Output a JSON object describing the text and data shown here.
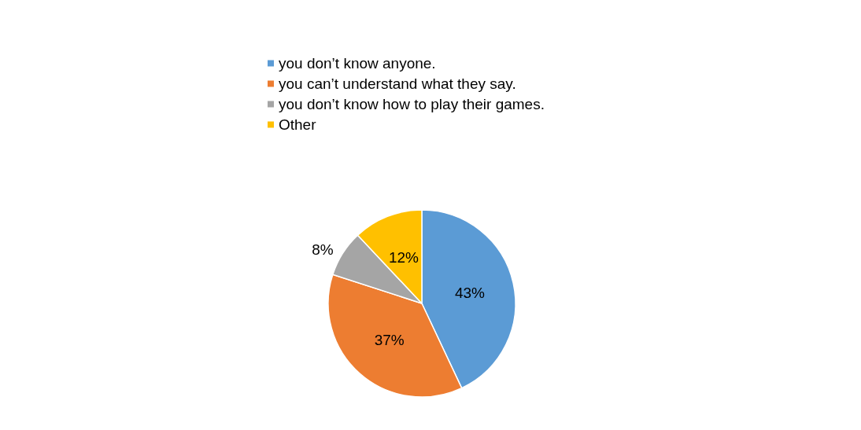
{
  "chart_data": {
    "type": "pie",
    "categories": [
      "you don’t know anyone.",
      "you can’t understand what they say.",
      "you don’t know how to play their games.",
      "Other"
    ],
    "values": [
      43,
      37,
      8,
      12
    ],
    "colors": [
      "#5b9bd5",
      "#ed7d31",
      "#a5a5a5",
      "#ffc000"
    ],
    "value_labels": [
      "43%",
      "37%",
      "8%",
      "12%"
    ],
    "legend": "top"
  }
}
